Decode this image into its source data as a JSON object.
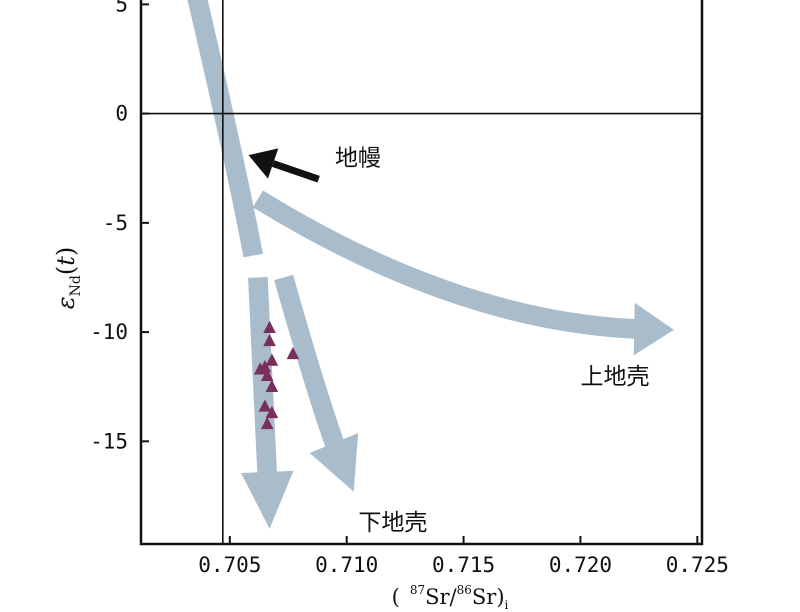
{
  "chart_data": {
    "type": "scatter",
    "title": "",
    "xlabel": "(87Sr/86Sr)i",
    "xlabel_parts": {
      "open": "(",
      "sup1": "87",
      "t1": "Sr/",
      "sup2": "86",
      "t2": "Sr)",
      "sub": "i"
    },
    "ylabel": "εNd(t)",
    "ylabel_parts": {
      "sym": "ε",
      "sub": "Nd",
      "open": "(",
      "var": "t",
      "close": ")"
    },
    "xlim": [
      0.7012,
      0.7252
    ],
    "ylim": [
      -19.7,
      5.2
    ],
    "x_ticks": [
      {
        "value": 0.705,
        "label": "0.705"
      },
      {
        "value": 0.71,
        "label": "0.710"
      },
      {
        "value": 0.715,
        "label": "0.715"
      },
      {
        "value": 0.72,
        "label": "0.720"
      },
      {
        "value": 0.725,
        "label": "0.725"
      }
    ],
    "y_ticks": [
      {
        "value": 5,
        "label": "5"
      },
      {
        "value": 0,
        "label": "0"
      },
      {
        "value": -5,
        "label": "-5"
      },
      {
        "value": -10,
        "label": "-10"
      },
      {
        "value": -15,
        "label": "-15"
      }
    ],
    "reference_lines": {
      "x": 0.7047,
      "y": 0
    },
    "points": [
      {
        "x": 0.7067,
        "y": -9.8
      },
      {
        "x": 0.7067,
        "y": -10.4
      },
      {
        "x": 0.7077,
        "y": -11.0
      },
      {
        "x": 0.7068,
        "y": -11.3
      },
      {
        "x": 0.7065,
        "y": -11.6
      },
      {
        "x": 0.7063,
        "y": -11.7
      },
      {
        "x": 0.7066,
        "y": -12.0
      },
      {
        "x": 0.7068,
        "y": -12.5
      },
      {
        "x": 0.7065,
        "y": -13.4
      },
      {
        "x": 0.7068,
        "y": -13.7
      },
      {
        "x": 0.7066,
        "y": -14.2
      }
    ],
    "marker": {
      "shape": "triangle",
      "color": "#7a2e5e"
    },
    "trend_color": "#a9bccb",
    "trends": [
      {
        "id": "mantle",
        "kind": "band",
        "width": 0.9,
        "path": [
          [
            0.7036,
            5.3
          ],
          [
            0.7053,
            -2.5
          ],
          [
            0.706,
            -6.5
          ]
        ]
      },
      {
        "id": "lower-a",
        "kind": "arrow",
        "width": 0.9,
        "head_width": 2.4,
        "head_len": 2.6,
        "path": [
          [
            0.7062,
            -7.5
          ],
          [
            0.7066,
            -16.4
          ],
          [
            0.7067,
            -19.0
          ]
        ]
      },
      {
        "id": "lower-b",
        "kind": "arrow",
        "width": 0.9,
        "head_width": 2.4,
        "head_len": 2.4,
        "path": [
          [
            0.7073,
            -7.5
          ],
          [
            0.709,
            -13.9
          ],
          [
            0.7103,
            -17.3
          ]
        ]
      },
      {
        "id": "upper",
        "kind": "arrow",
        "width": 0.9,
        "head_width": 2.4,
        "head_len": 0.0017,
        "path": [
          [
            0.7062,
            -3.9
          ],
          [
            0.715,
            -9.7
          ],
          [
            0.724,
            -9.9
          ]
        ]
      }
    ],
    "pointer": {
      "from": [
        0.7088,
        -3.0
      ],
      "to": [
        0.7058,
        -1.9
      ]
    },
    "annotations": [
      {
        "id": "mantle",
        "text": "地幔",
        "x": 0.7095,
        "y": -2.0
      },
      {
        "id": "upper-crust",
        "text": "上地壳",
        "x": 0.72,
        "y": -12.0
      },
      {
        "id": "lower-crust",
        "text": "下地壳",
        "x": 0.7105,
        "y": -18.7
      }
    ]
  }
}
